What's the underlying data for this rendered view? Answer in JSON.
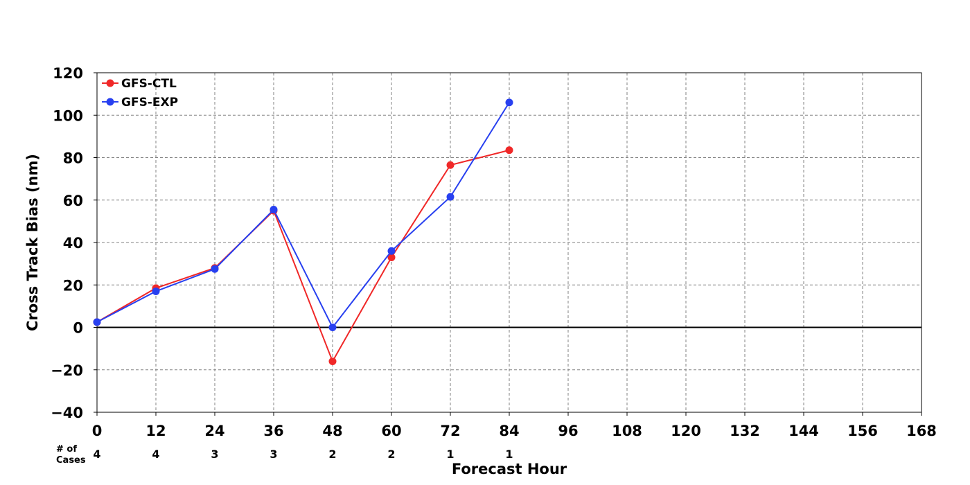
{
  "chart_data": {
    "type": "line",
    "title": "",
    "xlabel": "Forecast Hour",
    "ylabel": "Cross Track Bias (nm)",
    "xlim": [
      0,
      168
    ],
    "ylim": [
      -40,
      120
    ],
    "x_ticks": [
      0,
      12,
      24,
      36,
      48,
      60,
      72,
      84,
      96,
      108,
      120,
      132,
      144,
      156,
      168
    ],
    "y_ticks": [
      -40,
      -20,
      0,
      20,
      40,
      60,
      80,
      100,
      120
    ],
    "y_tick_labels": [
      "−40",
      "−20",
      "0",
      "20",
      "40",
      "60",
      "80",
      "100",
      "120"
    ],
    "grid": true,
    "zero_line": true,
    "legend_position": "top-left",
    "cases_label_line1": "# of",
    "cases_label_line2": "Cases",
    "cases": [
      {
        "x": 0,
        "n": "4"
      },
      {
        "x": 12,
        "n": "4"
      },
      {
        "x": 24,
        "n": "3"
      },
      {
        "x": 36,
        "n": "3"
      },
      {
        "x": 48,
        "n": "2"
      },
      {
        "x": 60,
        "n": "2"
      },
      {
        "x": 72,
        "n": "1"
      },
      {
        "x": 84,
        "n": "1"
      }
    ],
    "series": [
      {
        "name": "GFS-CTL",
        "color": "#f02828",
        "x": [
          0,
          12,
          24,
          36,
          48,
          60,
          72,
          84
        ],
        "values": [
          2.5,
          18.5,
          28,
          55,
          -16,
          33,
          76.5,
          83.5
        ]
      },
      {
        "name": "GFS-EXP",
        "color": "#2840f0",
        "x": [
          0,
          12,
          24,
          36,
          48,
          60,
          72,
          84
        ],
        "values": [
          2.5,
          17,
          27.5,
          55.5,
          0,
          36,
          61.5,
          106
        ]
      }
    ]
  }
}
